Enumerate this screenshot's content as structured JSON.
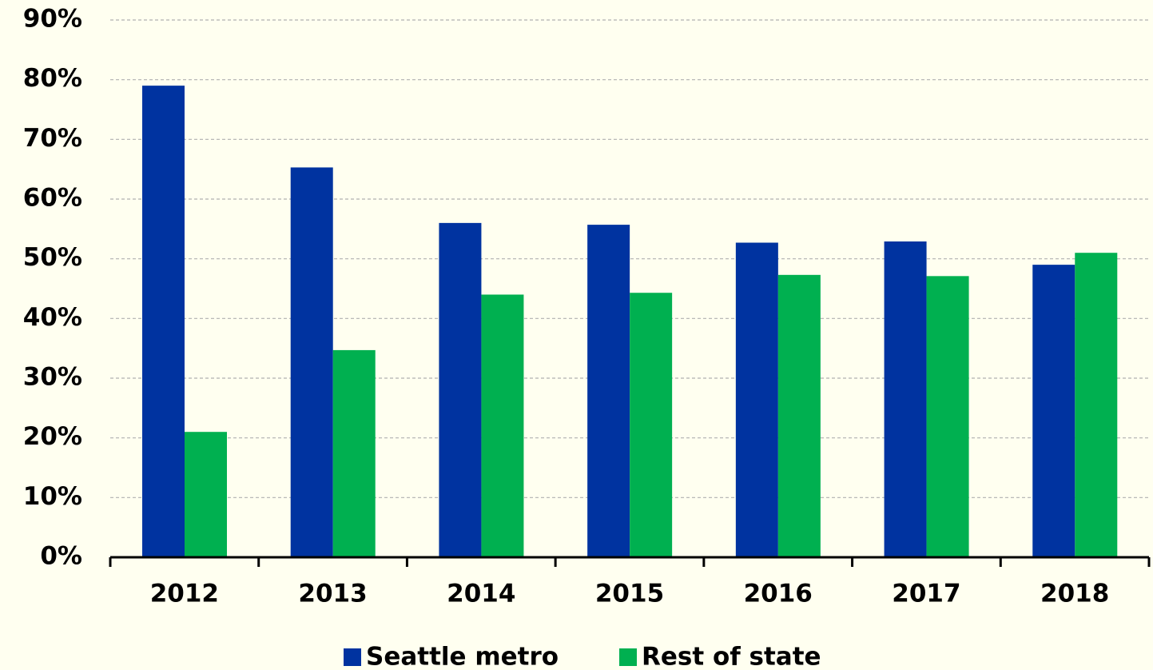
{
  "chart_data": {
    "type": "bar",
    "categories": [
      "2012",
      "2013",
      "2014",
      "2015",
      "2016",
      "2017",
      "2018"
    ],
    "series": [
      {
        "name": "Seattle metro",
        "color": "#0033a0",
        "values": [
          79,
          65.3,
          56,
          55.7,
          52.7,
          52.9,
          49
        ]
      },
      {
        "name": "Rest of state",
        "color": "#00b050",
        "values": [
          21,
          34.7,
          44,
          44.3,
          47.3,
          47.1,
          51
        ]
      }
    ],
    "ylim": [
      0,
      90
    ],
    "yticks": [
      {
        "value": 0,
        "label": "0%"
      },
      {
        "value": 10,
        "label": "10%"
      },
      {
        "value": 20,
        "label": "20%"
      },
      {
        "value": 30,
        "label": "30%"
      },
      {
        "value": 40,
        "label": "40%"
      },
      {
        "value": 50,
        "label": "50%"
      },
      {
        "value": 60,
        "label": "60%"
      },
      {
        "value": 70,
        "label": "70%"
      },
      {
        "value": 80,
        "label": "80%"
      },
      {
        "value": 90,
        "label": "90%"
      }
    ],
    "grid": true,
    "legend": "bottom"
  }
}
